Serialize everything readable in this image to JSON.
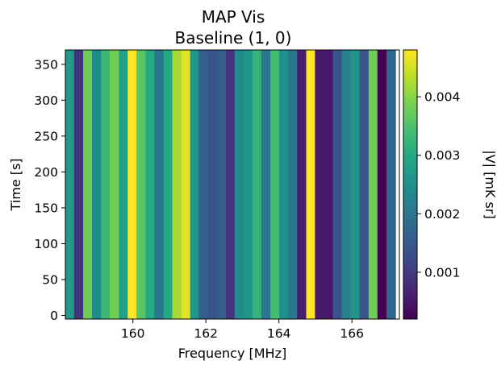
{
  "chart_data": {
    "type": "heatmap",
    "title": "MAP Vis",
    "subtitle": "Baseline (1, 0)",
    "xlabel": "Frequency [MHz]",
    "ylabel": "Time [s]",
    "colorbar_label": "|V| [mK sr]",
    "colormap": "viridis",
    "xlim": [
      158.15,
      167.3
    ],
    "ylim": [
      370,
      -5
    ],
    "x_ticks": [
      {
        "value": 160,
        "label": "160"
      },
      {
        "value": 162,
        "label": "162"
      },
      {
        "value": 164,
        "label": "164"
      },
      {
        "value": 166,
        "label": "166"
      }
    ],
    "y_ticks": [
      {
        "value": 0,
        "label": "0"
      },
      {
        "value": 50,
        "label": "50"
      },
      {
        "value": 100,
        "label": "100"
      },
      {
        "value": 150,
        "label": "150"
      },
      {
        "value": 200,
        "label": "200"
      },
      {
        "value": 250,
        "label": "250"
      },
      {
        "value": 300,
        "label": "300"
      },
      {
        "value": 350,
        "label": "350"
      }
    ],
    "color_range": [
      0.0002,
      0.0048
    ],
    "colorbar_ticks": [
      {
        "value": 0.001,
        "label": "0.001"
      },
      {
        "value": 0.002,
        "label": "0.002"
      },
      {
        "value": 0.003,
        "label": "0.003"
      },
      {
        "value": 0.004,
        "label": "0.004"
      }
    ],
    "channel_width_mhz": 0.244,
    "frequency_channels_mhz": [
      158.27,
      158.51,
      158.76,
      159.0,
      159.25,
      159.49,
      159.74,
      159.98,
      160.22,
      160.47,
      160.71,
      160.96,
      161.2,
      161.45,
      161.69,
      161.93,
      162.18,
      162.42,
      162.67,
      162.91,
      163.16,
      163.4,
      163.64,
      163.89,
      164.13,
      164.38,
      164.62,
      164.87,
      165.11,
      165.36,
      165.6,
      165.84,
      166.09,
      166.33,
      166.58,
      166.82,
      167.07
    ],
    "values": [
      0.0027,
      0.0009,
      0.0038,
      0.0024,
      0.0033,
      0.0038,
      0.0028,
      0.0048,
      0.0036,
      0.003,
      0.002,
      0.003,
      0.0042,
      0.0046,
      0.0026,
      0.0016,
      0.0014,
      0.0016,
      0.0009,
      0.0024,
      0.0026,
      0.0032,
      0.002,
      0.0034,
      0.0025,
      0.002,
      0.0006,
      0.0048,
      0.0005,
      0.0005,
      0.0014,
      0.0022,
      0.0026,
      0.0014,
      0.0038,
      0.0002,
      0.0017
    ]
  }
}
